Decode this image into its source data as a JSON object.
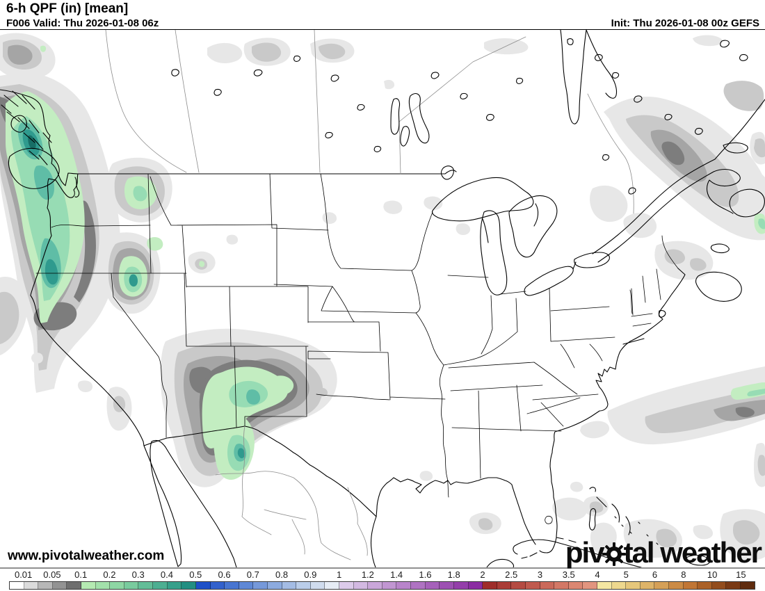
{
  "header": {
    "title": "6-h QPF (in) [mean]",
    "valid": "F006 Valid: Thu 2026-01-08 06z",
    "init": "Init: Thu 2026-01-08 00z GEFS"
  },
  "map": {
    "watermark": "www.pivotalweather.com",
    "logo": {
      "prefix": "piv",
      "suffix": "tal weather",
      "icon": "gear-icon",
      "color": "#0d0d0d"
    },
    "shading_palette": {
      "gray_01": "#e7e7e7",
      "gray_02": "#c9c9c9",
      "gray_03": "#a5a5a5",
      "gray_04": "#7d7d7d",
      "green_01": "#c3edc1",
      "green_02": "#97dcb4",
      "green_03": "#5fbda6",
      "green_04": "#2f9a8e",
      "green_05": "#176e66"
    }
  },
  "colorbar": {
    "units": "in",
    "cells": [
      "#ffffff",
      "#dcdcdc",
      "#b7b7b7",
      "#939393",
      "#6f6f6f",
      "#b5eab2",
      "#a3e1ab",
      "#8ed7a4",
      "#79cb9e",
      "#63bd98",
      "#4daf92",
      "#37a08b",
      "#228f82",
      "#1e50c8",
      "#3361cc",
      "#4875d1",
      "#5f88d6",
      "#7699da",
      "#8dabdf",
      "#a4bce4",
      "#bacde9",
      "#d0dcee",
      "#e6ecf5",
      "#dccaea",
      "#d3b9e2",
      "#caa7da",
      "#c196d2",
      "#b884ca",
      "#af73c2",
      "#a661ba",
      "#9d50b2",
      "#943eaa",
      "#8b2da2",
      "#9f2d2a",
      "#aa3c36",
      "#b54b42",
      "#c05a4e",
      "#ca695a",
      "#d37866",
      "#db8772",
      "#e2957f",
      "#f4e7a2",
      "#eed88e",
      "#e6c77b",
      "#deb469",
      "#d5a057",
      "#cc8b45",
      "#c17635",
      "#ab6127",
      "#934d1d",
      "#7a3a15",
      "#5f2b0e"
    ],
    "ticks": [
      {
        "label": "0.01",
        "cell": 1
      },
      {
        "label": "0.05",
        "cell": 3
      },
      {
        "label": "0.1",
        "cell": 5
      },
      {
        "label": "0.2",
        "cell": 7
      },
      {
        "label": "0.3",
        "cell": 9
      },
      {
        "label": "0.4",
        "cell": 11
      },
      {
        "label": "0.5",
        "cell": 13
      },
      {
        "label": "0.6",
        "cell": 15
      },
      {
        "label": "0.7",
        "cell": 17
      },
      {
        "label": "0.8",
        "cell": 19
      },
      {
        "label": "0.9",
        "cell": 21
      },
      {
        "label": "1",
        "cell": 23
      },
      {
        "label": "1.2",
        "cell": 25
      },
      {
        "label": "1.4",
        "cell": 27
      },
      {
        "label": "1.6",
        "cell": 29
      },
      {
        "label": "1.8",
        "cell": 31
      },
      {
        "label": "2",
        "cell": 33
      },
      {
        "label": "2.5",
        "cell": 35
      },
      {
        "label": "3",
        "cell": 37
      },
      {
        "label": "3.5",
        "cell": 39
      },
      {
        "label": "4",
        "cell": 41
      },
      {
        "label": "5",
        "cell": 43
      },
      {
        "label": "6",
        "cell": 45
      },
      {
        "label": "8",
        "cell": 47
      },
      {
        "label": "10",
        "cell": 49
      },
      {
        "label": "15",
        "cell": 51
      }
    ]
  }
}
